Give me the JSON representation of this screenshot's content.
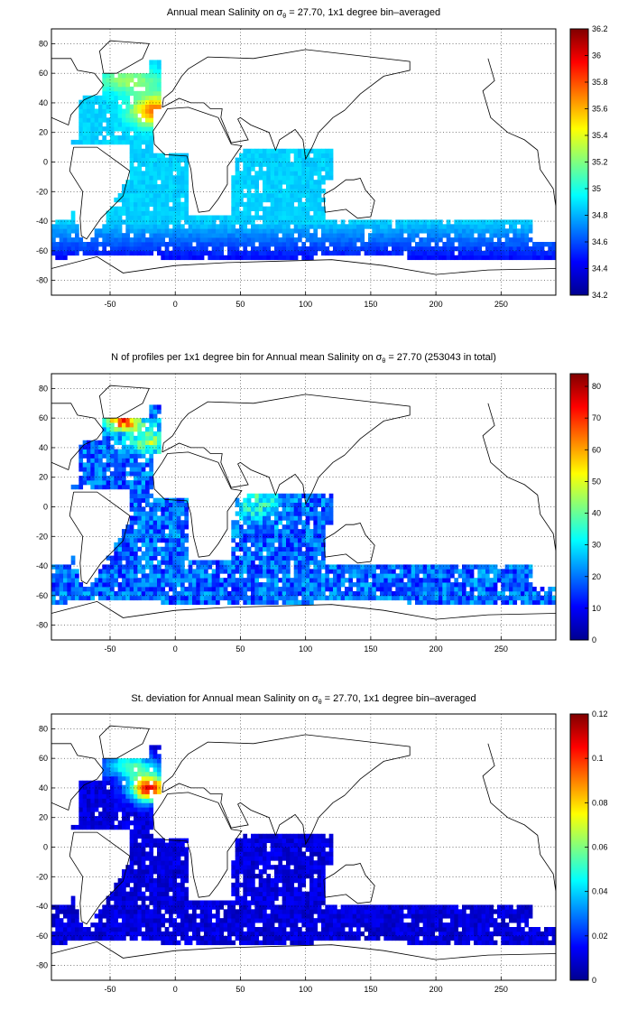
{
  "chart_data": [
    {
      "type": "heatmap",
      "title": "Annual mean Salinity on",
      "title_symbol": "σ",
      "title_subscript": "θ",
      "title_rest": " = 27.70, 1x1 degree bin–averaged",
      "xlim": [
        -95,
        292
      ],
      "ylim": [
        -90,
        90
      ],
      "x_ticks": [
        "-50",
        "0",
        "50",
        "100",
        "150",
        "200",
        "250"
      ],
      "y_ticks": [
        "80",
        "60",
        "40",
        "20",
        "0",
        "-20",
        "-40",
        "-60",
        "-80"
      ],
      "grid": true,
      "colormap": "jet",
      "colorbar": {
        "min": 34.2,
        "max": 36.2,
        "ticks": [
          "36.2",
          "36",
          "35.8",
          "35.6",
          "35.4",
          "35.2",
          "35",
          "34.8",
          "34.6",
          "34.4",
          "34.2"
        ]
      }
    },
    {
      "type": "heatmap",
      "title": "N of profiles per 1x1 degree bin for Annual mean Salinity on",
      "title_symbol": "σ",
      "title_subscript": "θ",
      "title_rest": " = 27.70 (253043 in total)",
      "total_profiles": 253043,
      "xlim": [
        -95,
        292
      ],
      "ylim": [
        -90,
        90
      ],
      "x_ticks": [
        "-50",
        "0",
        "50",
        "100",
        "150",
        "200",
        "250"
      ],
      "y_ticks": [
        "80",
        "60",
        "40",
        "20",
        "0",
        "-20",
        "-40",
        "-60",
        "-80"
      ],
      "grid": true,
      "colormap": "jet",
      "colorbar": {
        "min": 0,
        "max": 84,
        "ticks": [
          "80",
          "70",
          "60",
          "50",
          "40",
          "30",
          "20",
          "10",
          "0"
        ]
      }
    },
    {
      "type": "heatmap",
      "title": "St. deviation for Annual mean Salinity on",
      "title_symbol": "σ",
      "title_subscript": "θ",
      "title_rest": " = 27.70, 1x1 degree bin–averaged",
      "xlim": [
        -95,
        292
      ],
      "ylim": [
        -90,
        90
      ],
      "x_ticks": [
        "-50",
        "0",
        "50",
        "100",
        "150",
        "200",
        "250"
      ],
      "y_ticks": [
        "80",
        "60",
        "40",
        "20",
        "0",
        "-20",
        "-40",
        "-60",
        "-80"
      ],
      "grid": true,
      "colormap": "jet",
      "colorbar": {
        "min": 0,
        "max": 0.12,
        "ticks": [
          "0.12",
          "0.1",
          "0.08",
          "0.06",
          "0.04",
          "0.02",
          "0"
        ]
      }
    }
  ]
}
